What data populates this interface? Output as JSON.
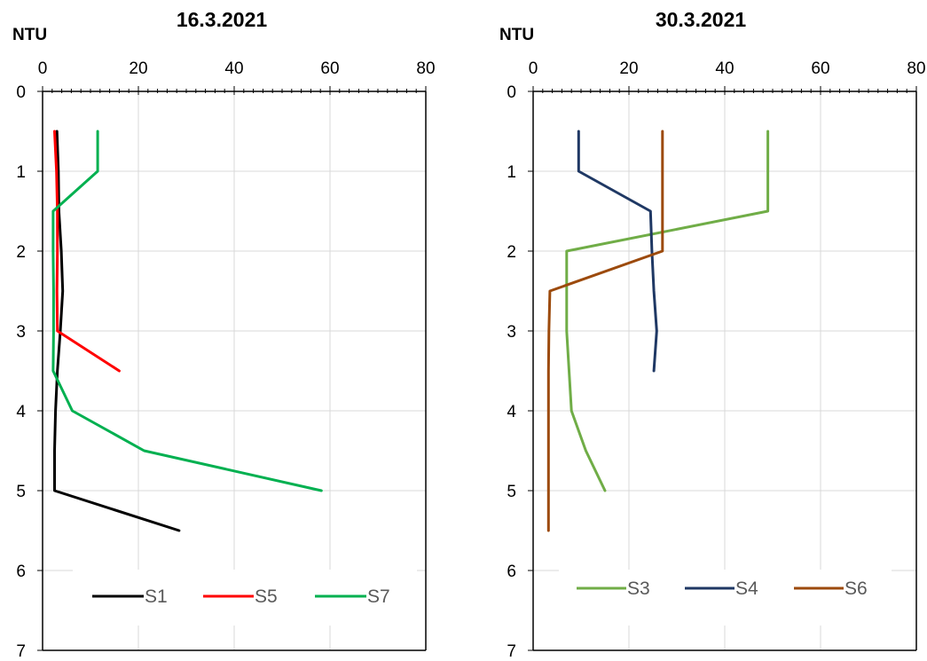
{
  "chart_data": [
    {
      "type": "line",
      "title": "16.3.2021",
      "xlabel": "NTU",
      "ylabel": "",
      "xlim": [
        0,
        80
      ],
      "ylim": [
        0,
        7
      ],
      "y_inverted": true,
      "x_axis_position": "top",
      "x_ticks": [
        "0",
        "20",
        "40",
        "60",
        "80"
      ],
      "y_ticks": [
        "0",
        "1",
        "2",
        "3",
        "4",
        "5",
        "6",
        "7"
      ],
      "grid": true,
      "legend_position": "bottom",
      "series": [
        {
          "name": "S1",
          "color": "#000000",
          "x": [
            3,
            3.3,
            3.4,
            3.9,
            4.2,
            3.7,
            3.1,
            2.7,
            2.5,
            2.5,
            28.5
          ],
          "y": [
            0.5,
            1,
            1.5,
            2,
            2.5,
            3,
            3.5,
            4,
            4.5,
            5,
            5.5
          ]
        },
        {
          "name": "S5",
          "color": "#ff0000",
          "x": [
            2.5,
            2.9,
            3.1,
            3.1,
            3.0,
            3.1,
            16
          ],
          "y": [
            0.5,
            1,
            1.5,
            2,
            2.5,
            3,
            3.5
          ]
        },
        {
          "name": "S7",
          "color": "#00b050",
          "x": [
            11.5,
            11.5,
            2.2,
            2.2,
            2.3,
            2.3,
            2.2,
            6.2,
            21.2,
            58.2
          ],
          "y": [
            0.5,
            1,
            1.5,
            2,
            2.5,
            3,
            3.5,
            4,
            4.5,
            5
          ]
        }
      ]
    },
    {
      "type": "line",
      "title": "30.3.2021",
      "xlabel": "NTU",
      "ylabel": "",
      "xlim": [
        0,
        80
      ],
      "ylim": [
        0,
        7
      ],
      "y_inverted": true,
      "x_axis_position": "top",
      "x_ticks": [
        "0",
        "20",
        "40",
        "60",
        "80"
      ],
      "y_ticks": [
        "0",
        "1",
        "2",
        "3",
        "4",
        "5",
        "6",
        "7"
      ],
      "grid": true,
      "legend_position": "bottom",
      "series": [
        {
          "name": "S3",
          "color": "#70ad47",
          "x": [
            49,
            49,
            49,
            7,
            7,
            7,
            7.5,
            8,
            11,
            15
          ],
          "y": [
            0.5,
            1,
            1.5,
            2,
            2.5,
            3,
            3.5,
            4,
            4.5,
            5
          ]
        },
        {
          "name": "S4",
          "color": "#1f3864",
          "x": [
            9.5,
            9.5,
            24.5,
            24.8,
            25.2,
            25.8,
            25.2
          ],
          "y": [
            0.5,
            1,
            1.5,
            2,
            2.5,
            3,
            3.5
          ]
        },
        {
          "name": "S6",
          "color": "#9c4a0c",
          "x": [
            27,
            27,
            27,
            27,
            3.5,
            3.3,
            3.2,
            3.2,
            3.2,
            3.2,
            3.2
          ],
          "y": [
            0.5,
            1,
            1.5,
            2,
            2.5,
            3,
            3.5,
            4,
            4.5,
            5,
            5.5
          ]
        }
      ]
    }
  ]
}
